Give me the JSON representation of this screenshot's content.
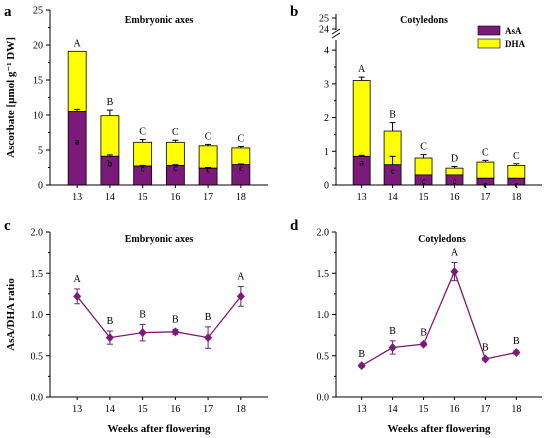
{
  "colors": {
    "asa": "#7b1a78",
    "dha": "#ffff00",
    "line": "#7b1a78",
    "bar_edge": "#000000"
  },
  "chart_data": [
    {
      "panel": "a",
      "type": "bar",
      "stacked": true,
      "title": "Embryonic axes",
      "ylabel": "Ascorbate [μmol g⁻¹ DW]",
      "xlabel": "",
      "categories": [
        "13",
        "14",
        "15",
        "16",
        "17",
        "18"
      ],
      "ylim": [
        0,
        25
      ],
      "yticks": [
        "0",
        "5",
        "10",
        "15",
        "20",
        "25"
      ],
      "legend_position": "none",
      "series": [
        {
          "name": "AsA",
          "values": [
            10.5,
            4.1,
            2.7,
            2.8,
            2.4,
            2.9
          ],
          "errors": [
            0.3,
            0.2,
            0.1,
            0.1,
            0.1,
            0.1
          ],
          "letters": [
            "a",
            "b",
            "c",
            "c",
            "c",
            "c"
          ]
        },
        {
          "name": "DHA",
          "values": [
            8.6,
            5.8,
            3.4,
            3.3,
            3.2,
            2.4
          ],
          "errors": [
            0.0,
            0.8,
            0.4,
            0.3,
            0.2,
            0.2
          ],
          "letters": [
            "A",
            "B",
            "C",
            "C",
            "C",
            "C"
          ]
        }
      ]
    },
    {
      "panel": "b",
      "type": "bar",
      "stacked": true,
      "title": "Cotyledons",
      "ylabel": "",
      "xlabel": "",
      "categories": [
        "13",
        "14",
        "15",
        "16",
        "17",
        "18"
      ],
      "ylim": [
        0,
        4.3
      ],
      "yticks": [
        "0",
        "1",
        "2",
        "3",
        "4"
      ],
      "broken_axis_ticks": [
        "24",
        "25"
      ],
      "legend_position": "top-right",
      "series": [
        {
          "name": "AsA",
          "values": [
            0.85,
            0.6,
            0.3,
            0.3,
            0.2,
            0.2
          ],
          "errors": [
            0.03,
            0.25,
            0.0,
            0.0,
            0.0,
            0.0
          ],
          "letters": [
            "a",
            "c",
            "c",
            "c",
            "c",
            "c"
          ]
        },
        {
          "name": "DHA",
          "values": [
            2.25,
            1.0,
            0.5,
            0.2,
            0.48,
            0.38
          ],
          "errors": [
            0.1,
            0.25,
            0.1,
            0.05,
            0.05,
            0.05
          ],
          "letters": [
            "A",
            "B",
            "C",
            "D",
            "C",
            "C"
          ]
        }
      ]
    },
    {
      "panel": "c",
      "type": "line",
      "title": "Embryonic axes",
      "ylabel": "AsA/DHA ratio",
      "xlabel": "Weeks after flowering",
      "categories": [
        "13",
        "14",
        "15",
        "16",
        "17",
        "18"
      ],
      "ylim": [
        0,
        2.0
      ],
      "yticks": [
        "0.0",
        "0.5",
        "1.0",
        "1.5",
        "2.0"
      ],
      "series": [
        {
          "values": [
            1.22,
            0.72,
            0.78,
            0.79,
            0.72,
            1.22
          ],
          "errors": [
            0.09,
            0.08,
            0.1,
            0.03,
            0.13,
            0.12
          ],
          "letters": [
            "A",
            "B",
            "B",
            "B",
            "B",
            "A"
          ]
        }
      ]
    },
    {
      "panel": "d",
      "type": "line",
      "title": "Cotyledons",
      "ylabel": "",
      "xlabel": "Weeks after flowering",
      "categories": [
        "13",
        "14",
        "15",
        "16",
        "17",
        "18"
      ],
      "ylim": [
        0,
        2.0
      ],
      "yticks": [
        "0.0",
        "0.5",
        "1.0",
        "1.5",
        "2.0"
      ],
      "series": [
        {
          "values": [
            0.38,
            0.6,
            0.64,
            1.52,
            0.46,
            0.54
          ],
          "errors": [
            0.02,
            0.08,
            0.02,
            0.11,
            0.02,
            0.02
          ],
          "letters": [
            "B",
            "B",
            "B",
            "A",
            "B",
            "B"
          ]
        }
      ]
    }
  ]
}
